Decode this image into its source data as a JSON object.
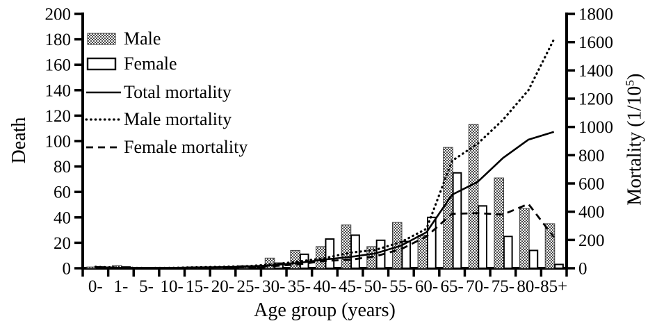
{
  "figure": {
    "left_axis_title": "Death",
    "right_axis_title_pre": "Mortality (1/10",
    "right_axis_title_sup": "5",
    "right_axis_title_post": ")",
    "x_axis_title": "Age group (years)"
  },
  "legend": {
    "items": [
      {
        "label": "Male",
        "swatch": "hatched-bar"
      },
      {
        "label": "Female",
        "swatch": "open-bar"
      },
      {
        "label": "Total mortality",
        "swatch": "solid-line"
      },
      {
        "label": "Male mortality",
        "swatch": "dotted-line"
      },
      {
        "label": "Female mortality",
        "swatch": "dashed-line"
      }
    ]
  },
  "chart_data": {
    "type": "combo-bar-line",
    "title": "",
    "categories": [
      "0-",
      "1-",
      "5-",
      "10-",
      "15-",
      "20-",
      "25-",
      "30-",
      "35-",
      "40-",
      "45-",
      "50-",
      "55-",
      "60-",
      "65-",
      "70-",
      "75-",
      "80-",
      "85+"
    ],
    "bar_series": [
      {
        "name": "Male",
        "axis": "left",
        "style": "hatched",
        "values": [
          1,
          2,
          0.3,
          0.4,
          1,
          1.2,
          2,
          8,
          14,
          17,
          34,
          17,
          36,
          26,
          95,
          113,
          71,
          47,
          35
        ]
      },
      {
        "name": "Female",
        "axis": "left",
        "style": "open",
        "values": [
          1,
          1,
          0.2,
          0.3,
          0.6,
          0.6,
          1.5,
          4,
          11,
          23,
          26,
          22,
          21,
          40,
          75,
          49,
          25,
          14,
          3
        ]
      }
    ],
    "line_series": [
      {
        "name": "Total mortality",
        "axis": "right",
        "style": "solid",
        "values": [
          8,
          3,
          2,
          3,
          6,
          8,
          12,
          22,
          38,
          62,
          80,
          105,
          160,
          255,
          520,
          610,
          780,
          910,
          965
        ]
      },
      {
        "name": "Male mortality",
        "axis": "right",
        "style": "dotted",
        "values": [
          10,
          4,
          2,
          3,
          7,
          10,
          15,
          28,
          48,
          72,
          110,
          130,
          185,
          280,
          760,
          880,
          1050,
          1260,
          1620
        ]
      },
      {
        "name": "Female mortality",
        "axis": "right",
        "style": "dashed",
        "values": [
          7,
          3,
          1,
          2,
          4,
          6,
          9,
          16,
          28,
          52,
          60,
          85,
          135,
          225,
          385,
          390,
          380,
          455,
          220
        ]
      }
    ],
    "left_axis": {
      "title": "Death",
      "min": 0,
      "max": 200,
      "step": 20
    },
    "right_axis": {
      "title": "Mortality (1/10^5)",
      "min": 0,
      "max": 1800,
      "step": 200
    },
    "x_axis": {
      "title": "Age group (years)"
    },
    "grid": false,
    "legend_position": "top-left-inside"
  }
}
